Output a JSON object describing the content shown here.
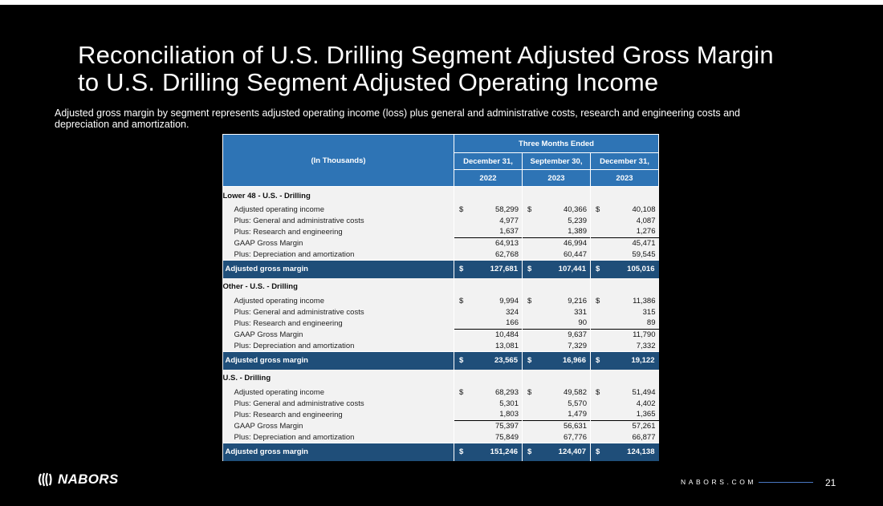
{
  "slide": {
    "title_line1": "Reconciliation of U.S. Drilling Segment Adjusted Gross Margin",
    "title_line2": "to U.S. Drilling Segment Adjusted Operating Income",
    "subtitle_line1": "Adjusted gross margin by segment represents adjusted operating income  (loss) plus general and administrative costs, research and engineering costs and",
    "subtitle_line2": "depreciation and amortization.",
    "logo_text": "NABORS",
    "website": "NABORS.COM",
    "page_number": "21"
  },
  "table": {
    "period_header": "Three Months Ended",
    "label_header": "(In Thousands)",
    "columns": [
      {
        "date": "December 31,",
        "year": "2022"
      },
      {
        "date": "September 30,",
        "year": "2023"
      },
      {
        "date": "December 31,",
        "year": "2023"
      }
    ],
    "sections": [
      {
        "title": "Lower 48 - U.S. - Drilling",
        "rows": [
          {
            "label": "Adjusted operating income",
            "values": [
              "58,299",
              "40,366",
              "40,108"
            ],
            "currency": "$"
          },
          {
            "label": "Plus: General and administrative costs",
            "values": [
              "4,977",
              "5,239",
              "4,087"
            ]
          },
          {
            "label": "Plus: Research and engineering",
            "values": [
              "1,637",
              "1,389",
              "1,276"
            ]
          },
          {
            "label": "GAAP Gross Margin",
            "values": [
              "64,913",
              "46,994",
              "45,471"
            ]
          },
          {
            "label": "Plus: Depreciation and amortization",
            "values": [
              "62,768",
              "60,447",
              "59,545"
            ]
          }
        ],
        "total": {
          "label": "Adjusted gross margin",
          "currency": "$",
          "values": [
            "127,681",
            "107,441",
            "105,016"
          ]
        }
      },
      {
        "title": "Other - U.S. - Drilling",
        "rows": [
          {
            "label": "Adjusted operating income",
            "values": [
              "9,994",
              "9,216",
              "11,386"
            ],
            "currency": "$"
          },
          {
            "label": "Plus: General and administrative costs",
            "values": [
              "324",
              "331",
              "315"
            ]
          },
          {
            "label": "Plus: Research and engineering",
            "values": [
              "166",
              "90",
              "89"
            ]
          },
          {
            "label": "GAAP Gross Margin",
            "values": [
              "10,484",
              "9,637",
              "11,790"
            ]
          },
          {
            "label": "Plus: Depreciation and amortization",
            "values": [
              "13,081",
              "7,329",
              "7,332"
            ]
          }
        ],
        "total": {
          "label": "Adjusted gross margin",
          "currency": "$",
          "values": [
            "23,565",
            "16,966",
            "19,122"
          ]
        }
      },
      {
        "title": "U.S. - Drilling",
        "rows": [
          {
            "label": "Adjusted operating income",
            "values": [
              "68,293",
              "49,582",
              "51,494"
            ],
            "currency": "$"
          },
          {
            "label": "Plus: General and administrative costs",
            "values": [
              "5,301",
              "5,570",
              "4,402"
            ]
          },
          {
            "label": "Plus: Research and engineering",
            "values": [
              "1,803",
              "1,479",
              "1,365"
            ]
          },
          {
            "label": "GAAP Gross Margin",
            "values": [
              "75,397",
              "56,631",
              "57,261"
            ]
          },
          {
            "label": "Plus: Depreciation and amortization",
            "values": [
              "75,849",
              "67,776",
              "66,877"
            ]
          }
        ],
        "total": {
          "label": "Adjusted gross margin",
          "currency": "$",
          "values": [
            "151,246",
            "124,407",
            "124,138"
          ]
        }
      }
    ]
  },
  "colors": {
    "header_blue": "#2e74b5",
    "total_blue": "#1f4e79",
    "table_bg": "#f2f2f2",
    "slide_bg": "#000000"
  }
}
